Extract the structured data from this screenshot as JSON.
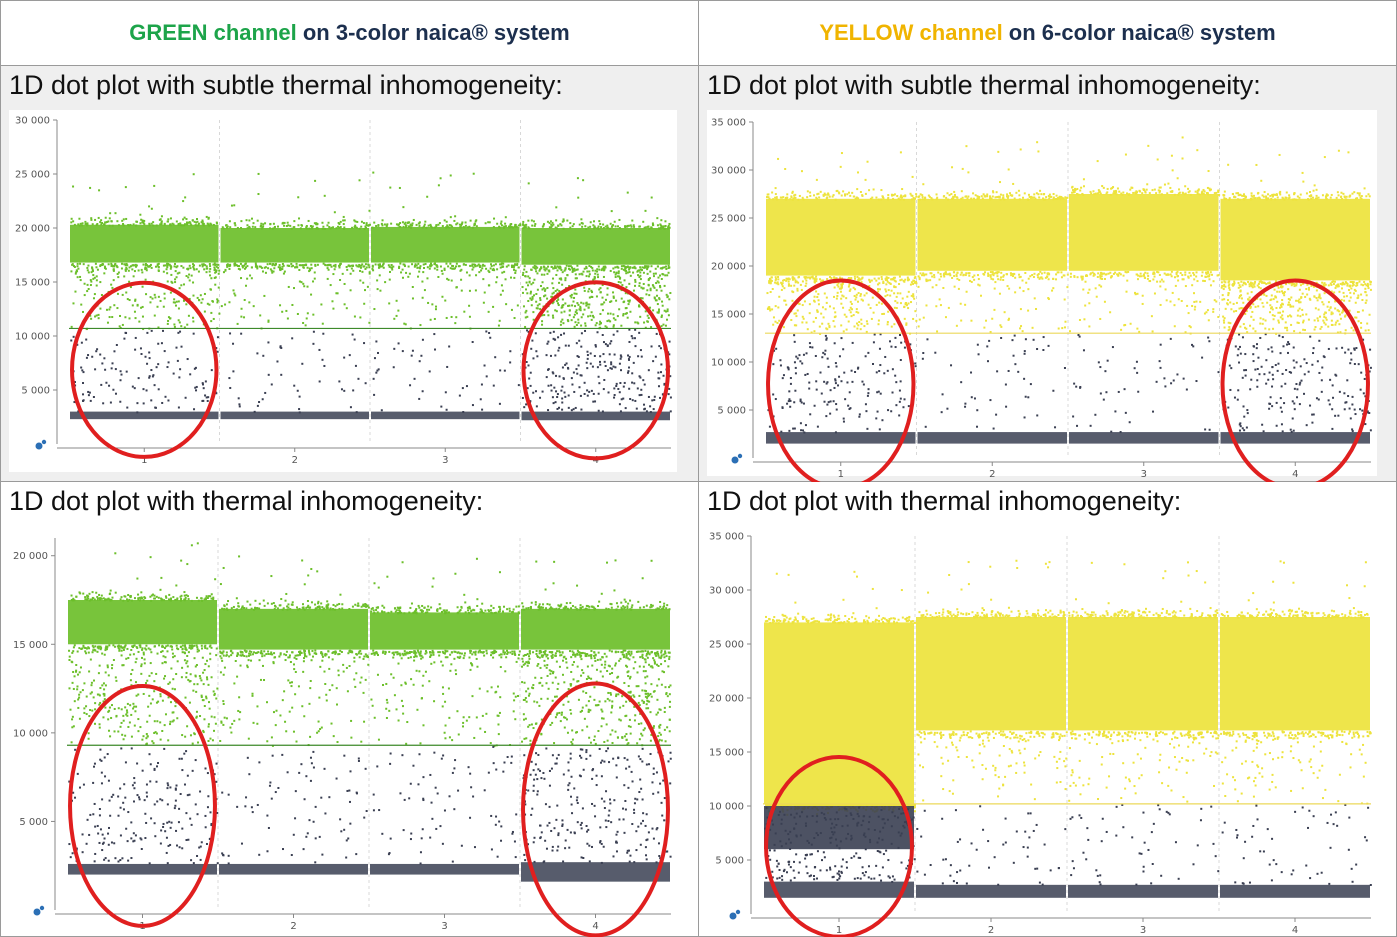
{
  "headers": {
    "left": {
      "accent": "GREEN channel",
      "rest": " on 3-color naica® system",
      "accent_color": "#1da44a"
    },
    "right": {
      "accent": "YELLOW channel",
      "rest": " on 6-color naica® system",
      "accent_color": "#f0b400"
    }
  },
  "panels": [
    {
      "caption": "1D dot plot with subtle thermal inhomogeneity:"
    },
    {
      "caption": "1D dot plot with subtle thermal inhomogeneity:"
    },
    {
      "caption": "1D dot plot with thermal inhomogeneity:"
    },
    {
      "caption": "1D dot plot with thermal inhomogeneity:"
    }
  ],
  "colors": {
    "green": "#6cbf2a",
    "yellow": "#ede33c",
    "negative": "#3a3f52",
    "circle": "#e01f1f"
  },
  "chart_data": [
    {
      "type": "scatter",
      "channel": "GREEN",
      "wells": [
        "1",
        "2",
        "3",
        "4"
      ],
      "ylim": [
        0,
        30000
      ],
      "yticks": [
        "30 000",
        "25 000",
        "20 000",
        "15 000",
        "10 000",
        "5 000"
      ],
      "ytick_values": [
        30000,
        25000,
        20000,
        15000,
        10000,
        5000
      ],
      "threshold": 10700,
      "positive_band": [
        [
          16800,
          20300
        ],
        [
          16800,
          20000
        ],
        [
          16800,
          20100
        ],
        [
          16600,
          20000
        ]
      ],
      "negative_band": [
        [
          2300,
          3000
        ],
        [
          2300,
          3000
        ],
        [
          2300,
          3000
        ],
        [
          2200,
          3000
        ]
      ],
      "intermediate_density": [
        0.5,
        0.2,
        0.2,
        1.0
      ],
      "highlighted_wells": [
        "1",
        "4"
      ]
    },
    {
      "type": "scatter",
      "channel": "YELLOW",
      "wells": [
        "1",
        "2",
        "3",
        "4"
      ],
      "ylim": [
        0,
        35000
      ],
      "yticks": [
        "35 000",
        "30 000",
        "25 000",
        "20 000",
        "15 000",
        "10 000",
        "5 000"
      ],
      "ytick_values": [
        35000,
        30000,
        25000,
        20000,
        15000,
        10000,
        5000
      ],
      "threshold": 13000,
      "positive_band": [
        [
          19000,
          27000
        ],
        [
          19500,
          27000
        ],
        [
          19500,
          27500
        ],
        [
          18500,
          27000
        ]
      ],
      "negative_band": [
        [
          1500,
          2700
        ],
        [
          1500,
          2700
        ],
        [
          1500,
          2700
        ],
        [
          1500,
          2700
        ]
      ],
      "intermediate_density": [
        0.7,
        0.2,
        0.2,
        0.8
      ],
      "highlighted_wells": [
        "1",
        "4"
      ]
    },
    {
      "type": "scatter",
      "channel": "GREEN",
      "wells": [
        "1",
        "2",
        "3",
        "4"
      ],
      "ylim": [
        0,
        21000
      ],
      "yticks": [
        "20 000",
        "15 000",
        "10 000",
        "5 000"
      ],
      "ytick_values": [
        20000,
        15000,
        10000,
        5000
      ],
      "threshold": 9300,
      "positive_band": [
        [
          15000,
          17500
        ],
        [
          14700,
          17000
        ],
        [
          14700,
          16800
        ],
        [
          14700,
          17000
        ]
      ],
      "negative_band": [
        [
          2000,
          2600
        ],
        [
          2000,
          2600
        ],
        [
          2000,
          2600
        ],
        [
          1600,
          2700
        ]
      ],
      "intermediate_density": [
        0.8,
        0.3,
        0.3,
        1.0
      ],
      "highlighted_wells": [
        "1",
        "4"
      ]
    },
    {
      "type": "scatter",
      "channel": "YELLOW",
      "wells": [
        "1",
        "2",
        "3",
        "4"
      ],
      "ylim": [
        0,
        35000
      ],
      "yticks": [
        "35 000",
        "30 000",
        "25 000",
        "20 000",
        "15 000",
        "10 000",
        "5 000"
      ],
      "ytick_values": [
        35000,
        30000,
        25000,
        20000,
        15000,
        10000,
        5000
      ],
      "threshold": 10200,
      "positive_band": [
        [
          10200,
          27000
        ],
        [
          17000,
          27500
        ],
        [
          17000,
          27500
        ],
        [
          17000,
          27500
        ]
      ],
      "negative_band": [
        [
          1500,
          3000
        ],
        [
          1500,
          2700
        ],
        [
          1500,
          2700
        ],
        [
          1500,
          2700
        ]
      ],
      "dense_negative_well1": [
        6000,
        10000
      ],
      "intermediate_density": [
        1.0,
        0.2,
        0.2,
        0.2
      ],
      "highlighted_wells": [
        "1"
      ]
    }
  ]
}
